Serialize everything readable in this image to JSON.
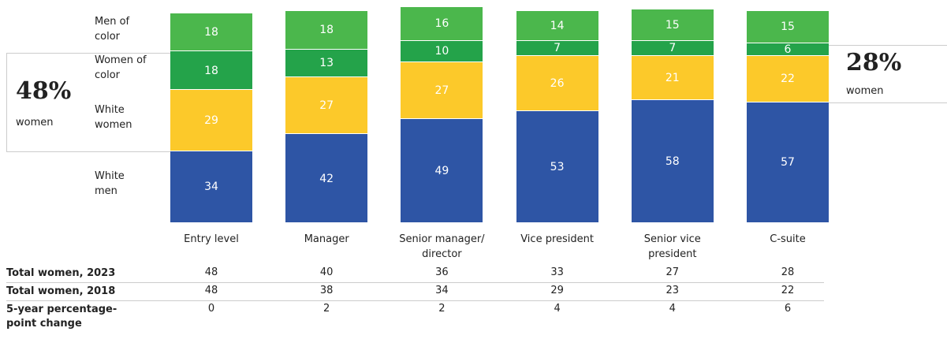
{
  "chart_data": {
    "type": "stacked_bar",
    "categories": [
      "Entry level",
      "Manager",
      "Senior manager/ director",
      "Vice president",
      "Senior vice president",
      "C-suite"
    ],
    "series": [
      {
        "name": "White men",
        "color": "#2e55a5",
        "values": [
          34,
          42,
          49,
          53,
          58,
          57
        ]
      },
      {
        "name": "White women",
        "color": "#fcc92a",
        "values": [
          29,
          27,
          27,
          26,
          21,
          22
        ]
      },
      {
        "name": "Women of color",
        "color": "#24a34a",
        "values": [
          18,
          13,
          10,
          7,
          7,
          6
        ]
      },
      {
        "name": "Men of color",
        "color": "#4bb74c",
        "values": [
          18,
          18,
          16,
          14,
          15,
          15
        ]
      }
    ],
    "annotations": [
      {
        "label": "48%",
        "text": "women"
      },
      {
        "label": "28%",
        "text": "women"
      }
    ]
  },
  "table": {
    "rows": [
      {
        "label": "Total women, 2023",
        "values": [
          48,
          40,
          36,
          33,
          27,
          28
        ]
      },
      {
        "label": "Total women, 2018",
        "values": [
          48,
          38,
          34,
          29,
          23,
          22
        ]
      },
      {
        "label": "5-year percentage-point change",
        "values": [
          0,
          2,
          2,
          4,
          4,
          6
        ]
      }
    ]
  }
}
